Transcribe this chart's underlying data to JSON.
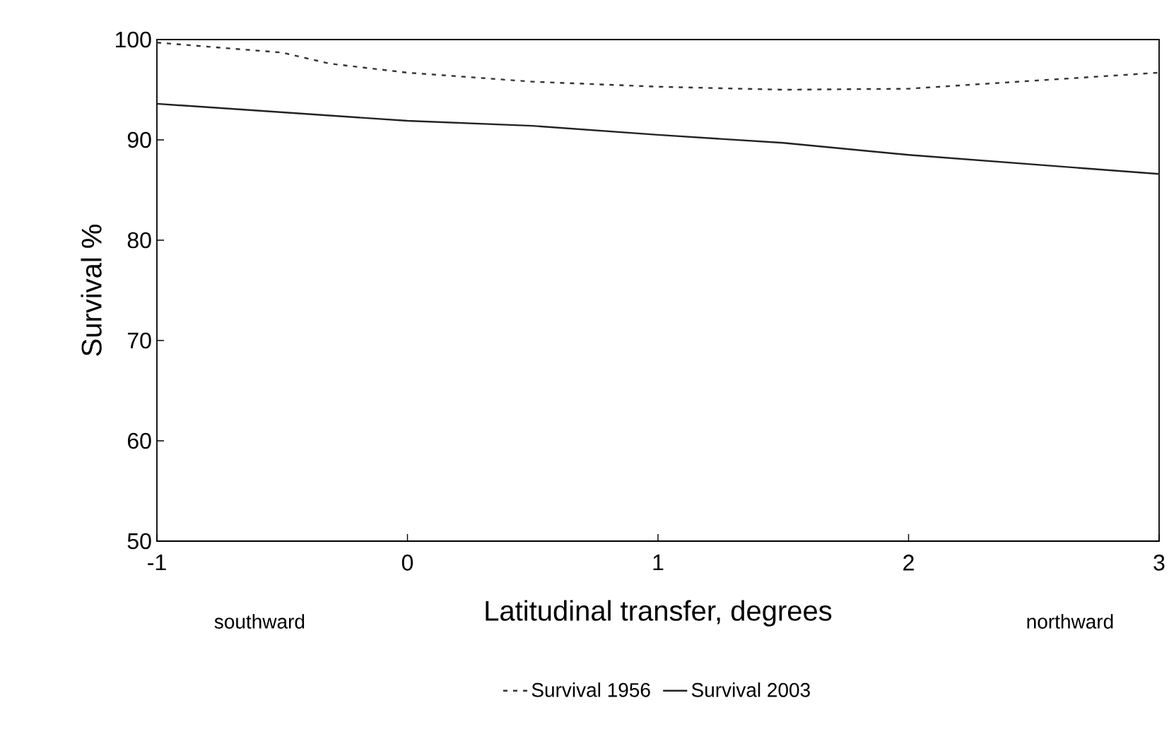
{
  "chart_data": {
    "type": "line",
    "xlabel": "Latitudinal transfer, degrees",
    "ylabel": "Survival %",
    "annotations": [
      "southward",
      "northward"
    ],
    "xlim": [
      -1,
      3
    ],
    "xticks": [
      -1,
      0,
      1,
      2,
      3
    ],
    "ylim": [
      50,
      100
    ],
    "yticks": [
      50,
      60,
      70,
      80,
      90,
      100
    ],
    "grid": false,
    "legend": "bottom",
    "marker": "none",
    "series": [
      {
        "name": "Survival 1956",
        "color": "#333333",
        "line_style": "dashed",
        "x": [
          -1,
          -0.5,
          -0.31,
          0,
          0.5,
          1,
          1.5,
          2,
          2.5,
          3
        ],
        "values": [
          99.7,
          98.7,
          97.6,
          96.7,
          95.8,
          95.3,
          95.0,
          95.1,
          95.9,
          96.7
        ]
      },
      {
        "name": "Survival 2003",
        "color": "#222222",
        "line_style": "solid",
        "x": [
          -1,
          0,
          0.5,
          1,
          1.5,
          2,
          3
        ],
        "values": [
          93.6,
          91.9,
          91.4,
          90.5,
          89.7,
          88.5,
          86.6
        ]
      }
    ]
  }
}
